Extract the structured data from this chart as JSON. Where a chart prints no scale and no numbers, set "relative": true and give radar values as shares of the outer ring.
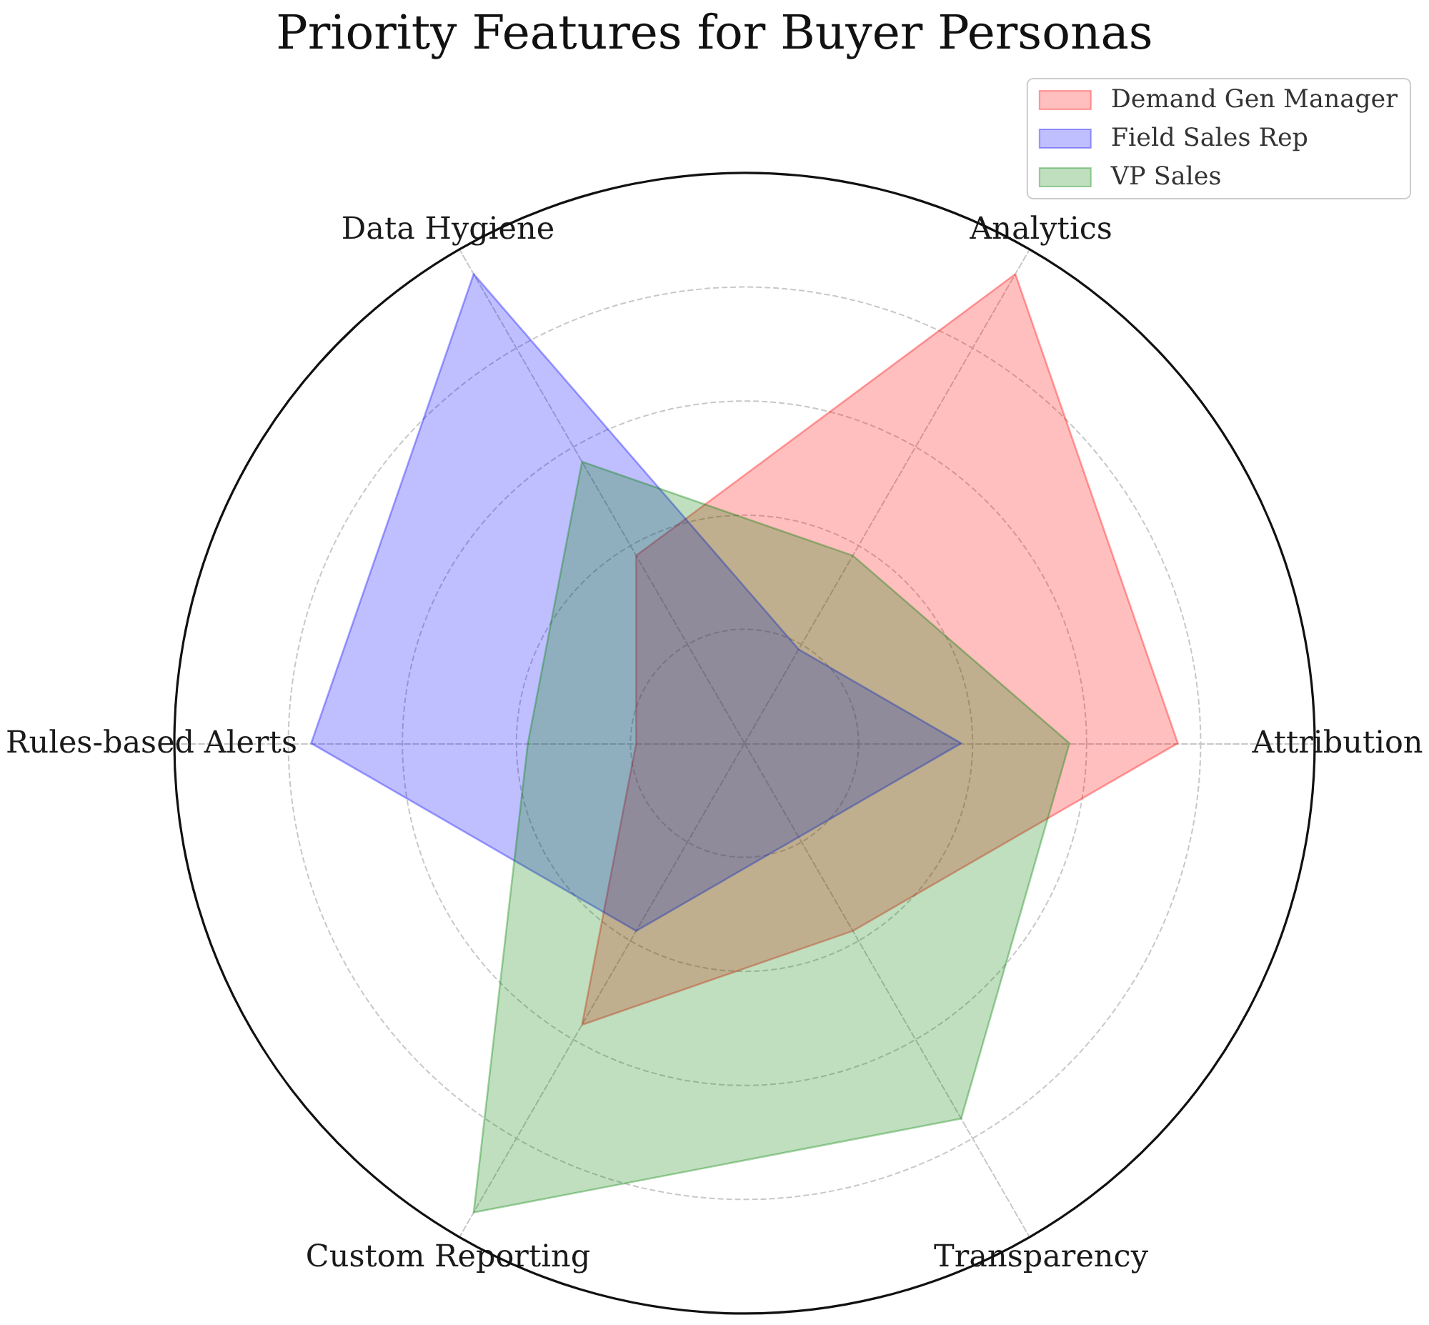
{
  "chart_data": {
    "type": "radar",
    "title": "Priority Features for Buyer Personas",
    "categories": [
      "Analytics",
      "Attribution",
      "Transparency",
      "Custom Reporting",
      "Rules-based Alerts",
      "Data Hygiene"
    ],
    "relative": true,
    "series": [
      {
        "name": "Demand Gen Manager",
        "color": "#ff0000",
        "values": [
          0.95,
          0.76,
          0.38,
          0.57,
          0.19,
          0.38
        ]
      },
      {
        "name": "Field Sales Rep",
        "color": "#0000ff",
        "values": [
          0.19,
          0.38,
          0.19,
          0.38,
          0.76,
          0.95
        ]
      },
      {
        "name": "VP Sales",
        "color": "#008000",
        "values": [
          0.38,
          0.57,
          0.76,
          0.95,
          0.38,
          0.57
        ]
      }
    ],
    "grid": true,
    "legend": "top right"
  }
}
